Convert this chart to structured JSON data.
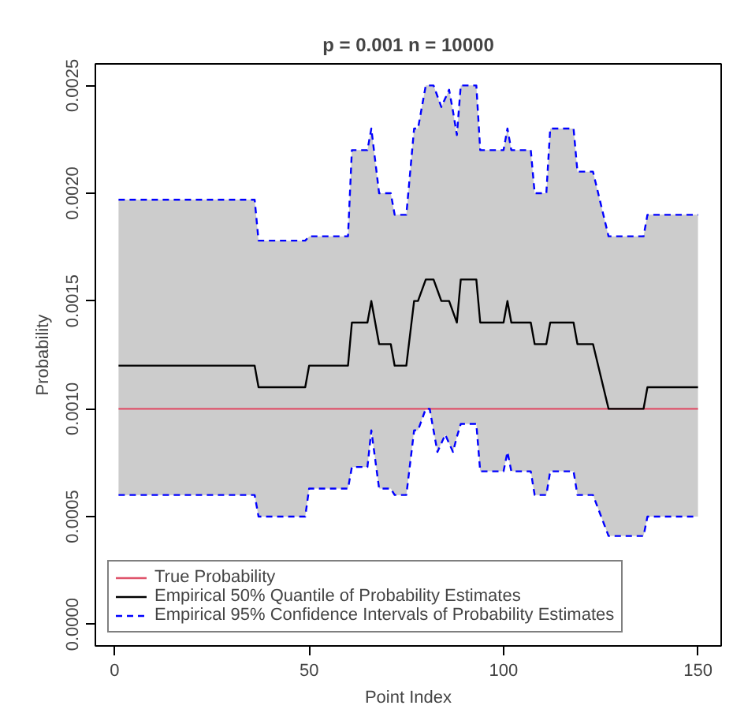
{
  "chart_data": {
    "type": "line",
    "title": "p = 0.001 n = 10000",
    "xlabel": "Point Index",
    "ylabel": "Probability",
    "xlim": [
      -4.96,
      155.96
    ],
    "ylim": [
      -0.0001,
      0.0026
    ],
    "xticks": [
      0,
      50,
      100,
      150
    ],
    "yticks": [
      {
        "value": 0,
        "label": "0.0000"
      },
      {
        "value": 0.0005,
        "label": "0.0005"
      },
      {
        "value": 0.001,
        "label": "0.0010"
      },
      {
        "value": 0.0015,
        "label": "0.0015"
      },
      {
        "value": 0.002,
        "label": "0.0020"
      },
      {
        "value": 0.0025,
        "label": "0.0025"
      }
    ],
    "grid": false,
    "legend": "bottom left",
    "x": [
      1,
      36,
      37,
      49,
      50,
      60,
      61,
      65,
      66,
      68,
      71,
      72,
      75,
      77,
      78,
      80,
      81,
      82,
      83,
      84,
      85,
      86,
      87,
      88,
      89,
      93,
      94,
      100,
      101,
      102,
      107,
      108,
      111,
      112,
      118,
      119,
      123,
      127,
      136,
      137,
      150
    ],
    "series": [
      {
        "name": "True Probability",
        "color": "#df536b",
        "line_style": "solid",
        "x": [
          1,
          150
        ],
        "values": [
          0.001,
          0.001
        ]
      },
      {
        "name": "Empirical 50% Quantile of Probability Estimates",
        "color": "#000000",
        "line_style": "solid",
        "values": [
          0.0012,
          0.0012,
          0.0011,
          0.0011,
          0.0012,
          0.0012,
          0.0014,
          0.0014,
          0.0015,
          0.0013,
          0.0013,
          0.0012,
          0.0012,
          0.0015,
          0.0015,
          0.0016,
          0.0016,
          0.0016,
          0.00155,
          0.0015,
          0.0015,
          0.0015,
          0.00145,
          0.0014,
          0.0016,
          0.0016,
          0.0014,
          0.0014,
          0.0015,
          0.0014,
          0.0014,
          0.0013,
          0.0013,
          0.0014,
          0.0014,
          0.0013,
          0.0013,
          0.001,
          0.001,
          0.0011,
          0.0011
        ],
        "lower": [
          0.0006,
          0.0006,
          0.0005,
          0.0005,
          0.00063,
          0.00063,
          0.00073,
          0.00073,
          0.0009,
          0.00063,
          0.00063,
          0.0006,
          0.0006,
          0.0009,
          0.0009,
          0.001,
          0.001,
          0.0009,
          0.0008,
          0.00084,
          0.00088,
          0.00084,
          0.0008,
          0.00087,
          0.00093,
          0.00093,
          0.00071,
          0.00071,
          0.0008,
          0.00071,
          0.00071,
          0.0006,
          0.0006,
          0.00071,
          0.00071,
          0.0006,
          0.0006,
          0.00041,
          0.00041,
          0.0005,
          0.0005
        ],
        "upper": [
          0.00197,
          0.00197,
          0.00178,
          0.00178,
          0.0018,
          0.0018,
          0.0022,
          0.0022,
          0.0023,
          0.002,
          0.002,
          0.0019,
          0.0019,
          0.0023,
          0.0023,
          0.0025,
          0.0025,
          0.0025,
          0.00245,
          0.0024,
          0.00244,
          0.00248,
          0.00238,
          0.00227,
          0.0025,
          0.0025,
          0.0022,
          0.0022,
          0.0023,
          0.0022,
          0.0022,
          0.002,
          0.002,
          0.0023,
          0.0023,
          0.0021,
          0.0021,
          0.0018,
          0.0018,
          0.0019,
          0.0019
        ]
      },
      {
        "name": "Empirical 95% Confidence Intervals of Probability Estimates",
        "color": "#0000ff",
        "line_style": "dashed",
        "values": [
          0.00197,
          0.00197,
          0.00178,
          0.00178,
          0.0018,
          0.0018,
          0.0022,
          0.0022,
          0.0023,
          0.002,
          0.002,
          0.0019,
          0.0019,
          0.0023,
          0.0023,
          0.0025,
          0.0025,
          0.0025,
          0.00245,
          0.0024,
          0.00244,
          0.00248,
          0.00238,
          0.00227,
          0.0025,
          0.0025,
          0.0022,
          0.0022,
          0.0023,
          0.0022,
          0.0022,
          0.002,
          0.002,
          0.0023,
          0.0023,
          0.0021,
          0.0021,
          0.0018,
          0.0018,
          0.0019,
          0.0019
        ]
      },
      {
        "color": "#0000ff",
        "line_style": "dashed",
        "values": [
          0.0006,
          0.0006,
          0.0005,
          0.0005,
          0.00063,
          0.00063,
          0.00073,
          0.00073,
          0.0009,
          0.00063,
          0.00063,
          0.0006,
          0.0006,
          0.0009,
          0.0009,
          0.001,
          0.001,
          0.0009,
          0.0008,
          0.00084,
          0.00088,
          0.00084,
          0.0008,
          0.00087,
          0.00093,
          0.00093,
          0.00071,
          0.00071,
          0.0008,
          0.00071,
          0.00071,
          0.0006,
          0.0006,
          0.00071,
          0.00071,
          0.0006,
          0.0006,
          0.00041,
          0.00041,
          0.0005,
          0.0005
        ]
      }
    ]
  }
}
